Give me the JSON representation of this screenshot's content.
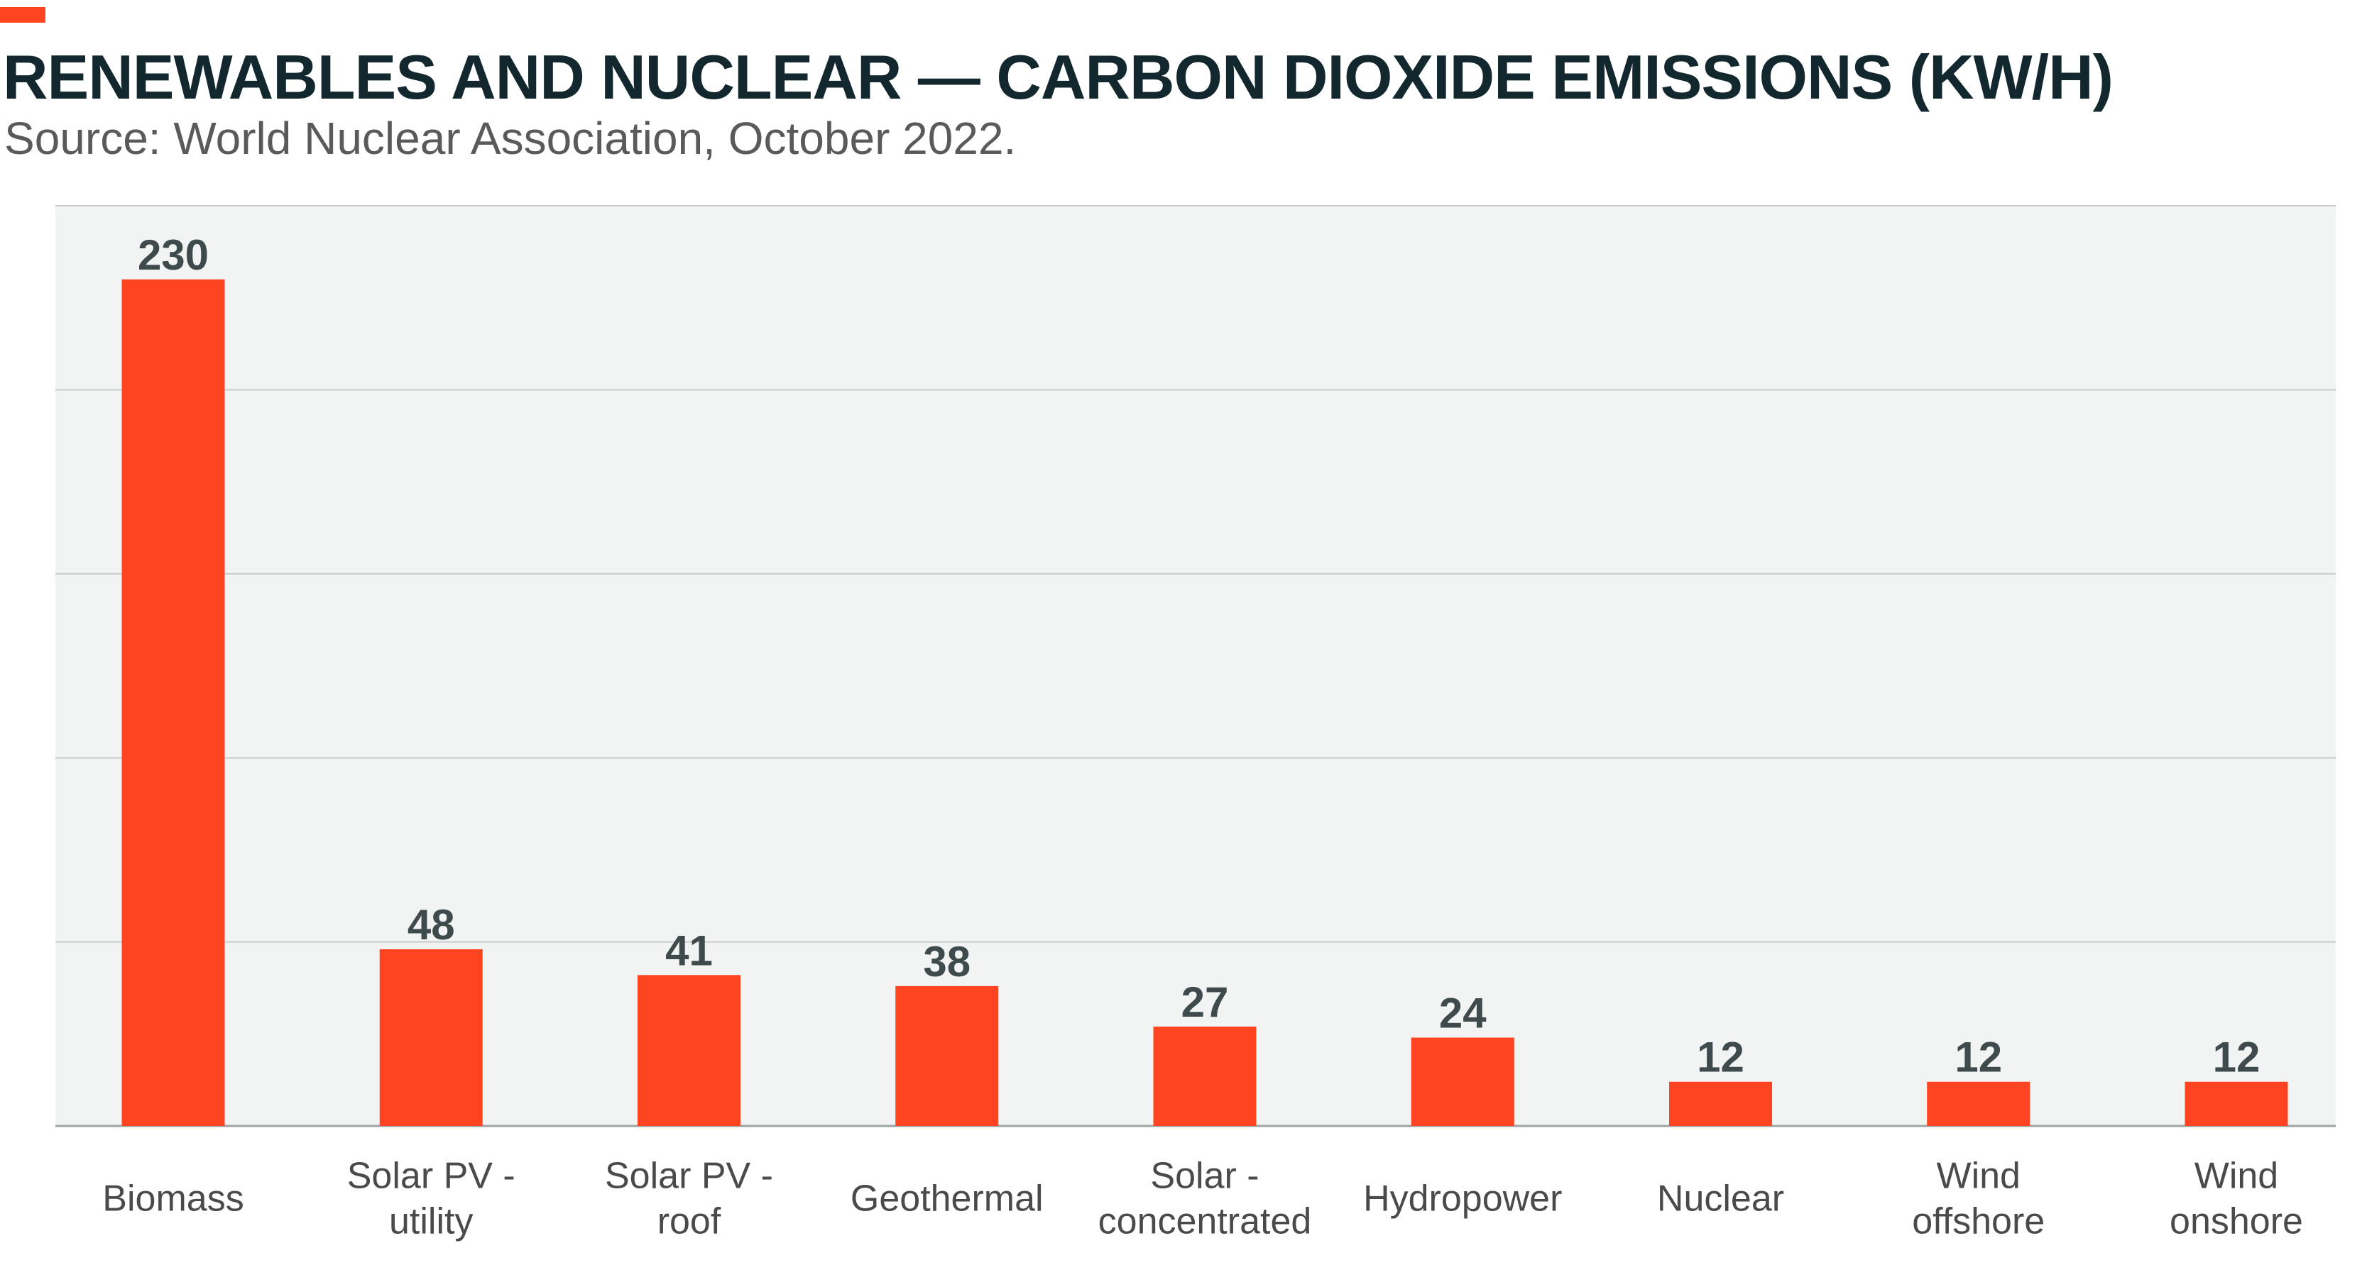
{
  "header": {
    "title": "RENEWABLES AND NUCLEAR — CARBON DIOXIDE EMISSIONS (KW/H)",
    "subtitle": "Source: World Nuclear Association, October 2022."
  },
  "colors": {
    "bar": "#ff4422",
    "accent": "#ff4422",
    "plot_background": "#f2f4f4",
    "gridline": "#c9cccc",
    "title": "#12282e"
  },
  "chart_data": {
    "type": "bar",
    "title": "RENEWABLES AND NUCLEAR — CARBON DIOXIDE EMISSIONS (KW/H)",
    "subtitle": "Source: World Nuclear Association, October 2022.",
    "xlabel": "",
    "ylabel": "",
    "categories": [
      [
        "Biomass"
      ],
      [
        "Solar PV -",
        "utility"
      ],
      [
        "Solar PV -",
        "roof"
      ],
      [
        "Geothermal"
      ],
      [
        "Solar -",
        "concentrated"
      ],
      [
        "Hydropower"
      ],
      [
        "Nuclear"
      ],
      [
        "Wind",
        "offshore"
      ],
      [
        "Wind",
        "onshore"
      ]
    ],
    "values": [
      230,
      48,
      41,
      38,
      27,
      24,
      12,
      12,
      12
    ],
    "ylim": [
      0,
      250
    ],
    "ygrid_step": 50,
    "grid": true,
    "y_tick_labels_shown": false,
    "legend": "none",
    "data_labels": true
  }
}
